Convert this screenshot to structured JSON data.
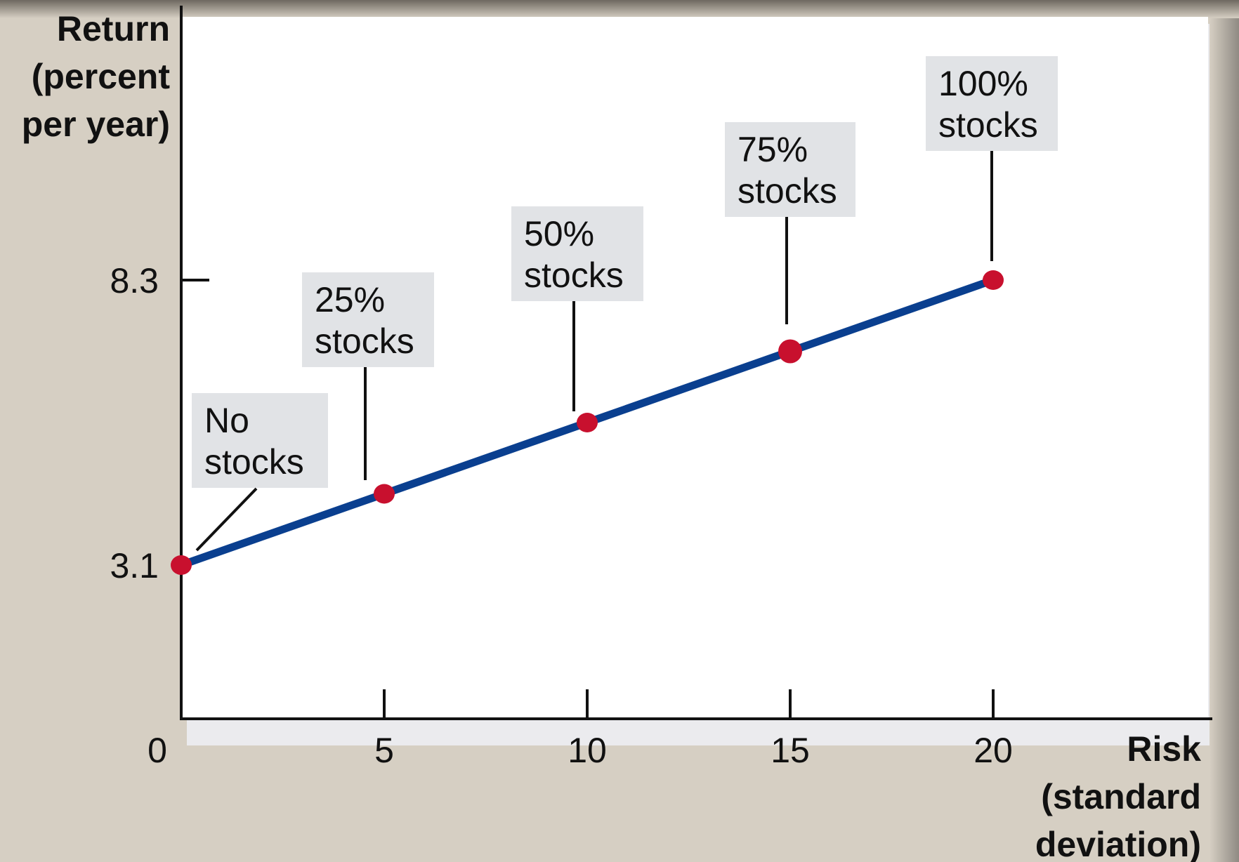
{
  "chart_data": {
    "type": "line",
    "title": "",
    "xlabel": [
      "Risk",
      "(standard",
      "deviation)"
    ],
    "ylabel": [
      "Return",
      "(percent",
      "per year)"
    ],
    "xlim": [
      0,
      25
    ],
    "ylim": [
      0,
      11
    ],
    "x_ticks": [
      0,
      5,
      10,
      15,
      20
    ],
    "x_tick_labels": [
      "0",
      "5",
      "10",
      "15",
      "20"
    ],
    "y_ticks": [
      3.1,
      8.3
    ],
    "y_tick_labels": [
      "3.1",
      "8.3"
    ],
    "grid": false,
    "legend": "none",
    "colors": {
      "line": "#0a3f8f",
      "points": "#c8102e",
      "label_box": "#e1e3e6",
      "plot_bg": "#ffffff",
      "page_bg": "#d6cfc3"
    },
    "series": [
      {
        "x": [
          0,
          5,
          10,
          15,
          20
        ],
        "y": [
          3.1,
          4.4,
          5.7,
          7.0,
          8.3
        ],
        "labels": [
          [
            "No",
            "stocks"
          ],
          [
            "25%",
            "stocks"
          ],
          [
            "50%",
            "stocks"
          ],
          [
            "75%",
            "stocks"
          ],
          [
            "100%",
            "stocks"
          ]
        ]
      }
    ]
  }
}
